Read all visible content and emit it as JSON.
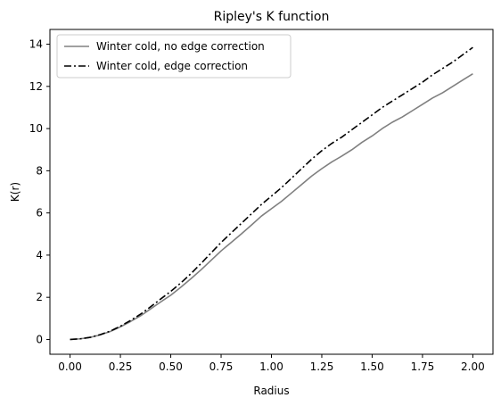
{
  "chart_data": {
    "type": "line",
    "title": "Ripley's K function",
    "xlabel": "Radius",
    "ylabel": "K(r)",
    "xlim": [
      -0.1,
      2.1
    ],
    "ylim": [
      -0.7,
      14.7
    ],
    "x_ticks": [
      0.0,
      0.25,
      0.5,
      0.75,
      1.0,
      1.25,
      1.5,
      1.75,
      2.0
    ],
    "x_tick_labels": [
      "0.00",
      "0.25",
      "0.50",
      "0.75",
      "1.00",
      "1.25",
      "1.50",
      "1.75",
      "2.00"
    ],
    "y_ticks": [
      0,
      2,
      4,
      6,
      8,
      10,
      12,
      14
    ],
    "y_tick_labels": [
      "0",
      "2",
      "4",
      "6",
      "8",
      "10",
      "12",
      "14"
    ],
    "grid": false,
    "legend_position": "upper-left",
    "series": [
      {
        "name": "Winter cold, no edge correction",
        "color": "#808080",
        "style": "solid",
        "x": [
          0.0,
          0.05,
          0.1,
          0.15,
          0.2,
          0.25,
          0.3,
          0.35,
          0.4,
          0.45,
          0.5,
          0.55,
          0.6,
          0.65,
          0.7,
          0.75,
          0.8,
          0.85,
          0.9,
          0.95,
          1.0,
          1.05,
          1.1,
          1.15,
          1.2,
          1.25,
          1.3,
          1.35,
          1.4,
          1.45,
          1.5,
          1.55,
          1.6,
          1.65,
          1.7,
          1.75,
          1.8,
          1.85,
          1.9,
          1.95,
          2.0
        ],
        "y": [
          0.0,
          0.03,
          0.1,
          0.22,
          0.38,
          0.6,
          0.85,
          1.12,
          1.45,
          1.78,
          2.1,
          2.48,
          2.88,
          3.3,
          3.75,
          4.2,
          4.6,
          5.0,
          5.42,
          5.85,
          6.2,
          6.55,
          6.95,
          7.35,
          7.75,
          8.1,
          8.42,
          8.7,
          9.0,
          9.35,
          9.65,
          10.0,
          10.3,
          10.55,
          10.85,
          11.15,
          11.45,
          11.7,
          12.0,
          12.3,
          12.6
        ]
      },
      {
        "name": "Winter cold, edge correction",
        "color": "#000000",
        "style": "dashdot",
        "x": [
          0.0,
          0.05,
          0.1,
          0.15,
          0.2,
          0.25,
          0.3,
          0.35,
          0.4,
          0.45,
          0.5,
          0.55,
          0.6,
          0.65,
          0.7,
          0.75,
          0.8,
          0.85,
          0.9,
          0.95,
          1.0,
          1.05,
          1.1,
          1.15,
          1.2,
          1.25,
          1.3,
          1.35,
          1.4,
          1.45,
          1.5,
          1.55,
          1.6,
          1.65,
          1.7,
          1.75,
          1.8,
          1.85,
          1.9,
          1.95,
          2.0
        ],
        "y": [
          0.0,
          0.03,
          0.1,
          0.23,
          0.4,
          0.63,
          0.9,
          1.2,
          1.55,
          1.92,
          2.28,
          2.68,
          3.12,
          3.6,
          4.1,
          4.6,
          5.05,
          5.5,
          5.95,
          6.4,
          6.8,
          7.2,
          7.65,
          8.1,
          8.55,
          8.95,
          9.3,
          9.6,
          9.95,
          10.3,
          10.65,
          11.0,
          11.3,
          11.6,
          11.9,
          12.2,
          12.55,
          12.85,
          13.15,
          13.5,
          13.85
        ]
      }
    ]
  }
}
